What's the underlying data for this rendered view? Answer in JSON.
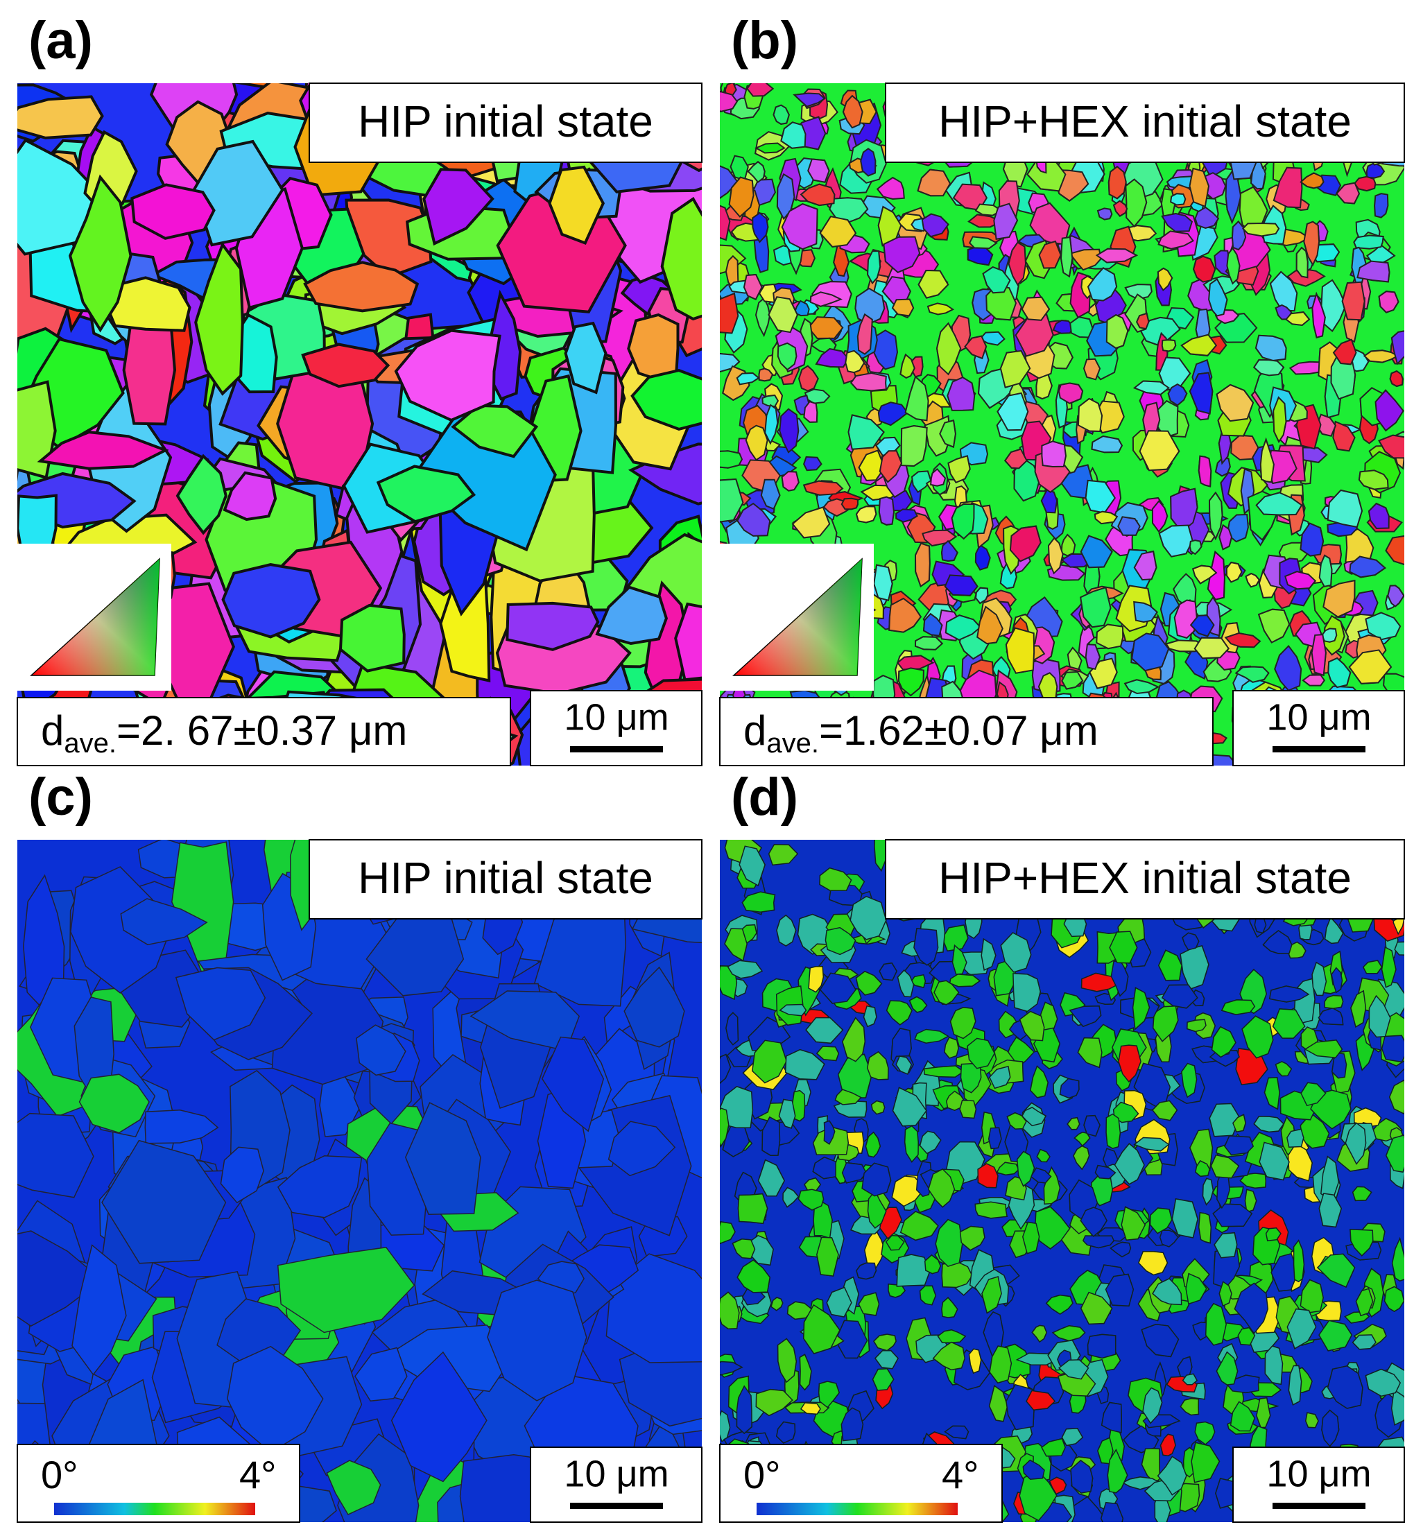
{
  "panels": [
    {
      "label": "(a)",
      "title": "HIP initial state",
      "grain_size": {
        "symbol": "d",
        "subscript": "ave.",
        "value": "=2. 67±0.37 μm"
      },
      "scale_bar": "10 μm"
    },
    {
      "label": "(b)",
      "title": "HIP+HEX initial state",
      "grain_size": {
        "symbol": "d",
        "subscript": "ave.",
        "value": "=1.62±0.07 μm"
      },
      "scale_bar": "10 μm"
    },
    {
      "label": "(c)",
      "title": "HIP initial state",
      "scale_bar": "10 μm",
      "color_bar": {
        "min": "0°",
        "max": "4°"
      }
    },
    {
      "label": "(d)",
      "title": "HIP+HEX initial state",
      "scale_bar": "10 μm",
      "color_bar": {
        "min": "0°",
        "max": "4°"
      }
    }
  ]
}
